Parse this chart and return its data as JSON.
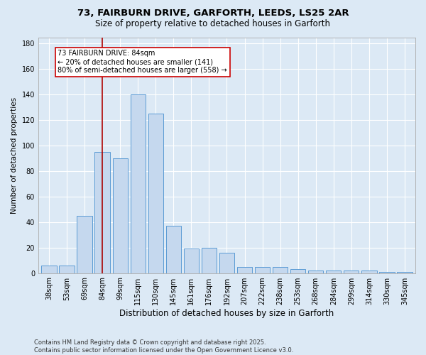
{
  "title_line1": "73, FAIRBURN DRIVE, GARFORTH, LEEDS, LS25 2AR",
  "title_line2": "Size of property relative to detached houses in Garforth",
  "xlabel": "Distribution of detached houses by size in Garforth",
  "ylabel": "Number of detached properties",
  "categories": [
    "38sqm",
    "53sqm",
    "69sqm",
    "84sqm",
    "99sqm",
    "115sqm",
    "130sqm",
    "145sqm",
    "161sqm",
    "176sqm",
    "192sqm",
    "207sqm",
    "222sqm",
    "238sqm",
    "253sqm",
    "268sqm",
    "284sqm",
    "299sqm",
    "314sqm",
    "330sqm",
    "345sqm"
  ],
  "values": [
    6,
    6,
    45,
    95,
    90,
    140,
    125,
    37,
    19,
    20,
    16,
    5,
    5,
    5,
    3,
    2,
    2,
    2,
    2,
    1,
    1
  ],
  "bar_color": "#c5d8ee",
  "bar_edge_color": "#5b9bd5",
  "vline_x_index": 3,
  "vline_color": "#aa0000",
  "annotation_text": "73 FAIRBURN DRIVE: 84sqm\n← 20% of detached houses are smaller (141)\n80% of semi-detached houses are larger (558) →",
  "annotation_box_edge": "#cc0000",
  "annotation_box_face": "#ffffff",
  "ylim": [
    0,
    185
  ],
  "yticks": [
    0,
    20,
    40,
    60,
    80,
    100,
    120,
    140,
    160,
    180
  ],
  "footer": "Contains HM Land Registry data © Crown copyright and database right 2025.\nContains public sector information licensed under the Open Government Licence v3.0.",
  "bg_color": "#dce9f5",
  "plot_bg_color": "#dce9f5",
  "grid_color": "#ffffff",
  "title1_fontsize": 9.5,
  "title2_fontsize": 8.5,
  "xlabel_fontsize": 8.5,
  "ylabel_fontsize": 7.5,
  "tick_fontsize": 7.0,
  "footer_fontsize": 6.0,
  "ann_fontsize": 7.0
}
